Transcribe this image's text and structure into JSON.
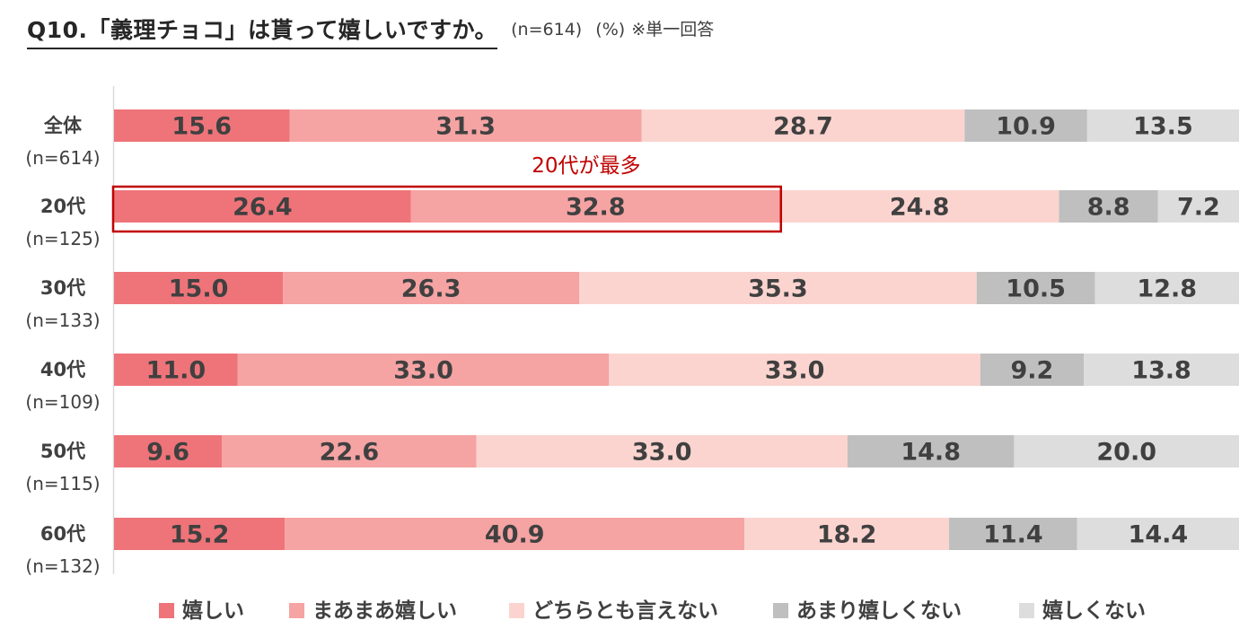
{
  "title": "Q10.「義理チョコ」は貰って嬉しいですか。",
  "sample_note": "(n=614)",
  "unit_note": "(%)",
  "answer_note": "※単一回答",
  "annotation": "20代が最多",
  "colors": {
    "series": [
      "#ee7479",
      "#f5a3a3",
      "#fbd4cf",
      "#bfbfbf",
      "#dddddd"
    ],
    "highlight": "#c00000"
  },
  "chart_data": {
    "type": "bar",
    "orientation": "horizontal",
    "stacked": true,
    "normalized": true,
    "categories": [
      "全体",
      "20代",
      "30代",
      "40代",
      "50代",
      "60代"
    ],
    "category_subs": [
      "(n=614)",
      "(n=125)",
      "(n=133)",
      "(n=109)",
      "(n=115)",
      "(n=132)"
    ],
    "series": [
      {
        "name": "嬉しい",
        "values": [
          15.6,
          26.4,
          15.0,
          11.0,
          9.6,
          15.2
        ]
      },
      {
        "name": "まあまあ嬉しい",
        "values": [
          31.3,
          32.8,
          26.3,
          33.0,
          22.6,
          40.9
        ]
      },
      {
        "name": "どちらとも言えない",
        "values": [
          28.7,
          24.8,
          35.3,
          33.0,
          33.0,
          18.2
        ]
      },
      {
        "name": "あまり嬉しくない",
        "values": [
          10.9,
          8.8,
          10.5,
          9.2,
          14.8,
          11.4
        ]
      },
      {
        "name": "嬉しくない",
        "values": [
          13.5,
          7.2,
          12.8,
          13.8,
          20.0,
          14.4
        ]
      }
    ],
    "data_labels": true,
    "legend_position": "bottom",
    "highlight": {
      "category": "20代",
      "series": [
        "嬉しい",
        "まあまあ嬉しい"
      ]
    }
  }
}
